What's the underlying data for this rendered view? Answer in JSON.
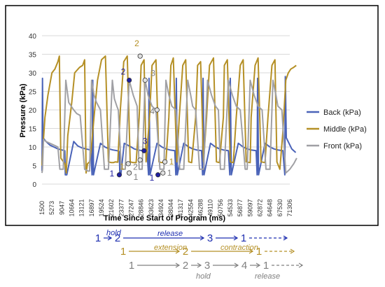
{
  "chart_data": {
    "type": "line",
    "ylabel": "Pressure (kPa)",
    "xlabel": "Time Since Start of Program (ms)",
    "ylim": [
      0,
      40
    ],
    "yticks": [
      0,
      5,
      10,
      15,
      20,
      25,
      30,
      35,
      40
    ],
    "grid": true,
    "legend_position": "right",
    "x_tick_labels": [
      "1500",
      "5273",
      "9047",
      "10664",
      "13121",
      "16897",
      "19524",
      "21602",
      "23377",
      "27247",
      "28846",
      "33623",
      "34924",
      "38044",
      "41317",
      "42554",
      "46288",
      "49110",
      "50756",
      "54533",
      "56877",
      "59097",
      "62872",
      "64648",
      "67530",
      "71306"
    ],
    "series": [
      {
        "name": "Back (kPa)",
        "color": "#4a63b8",
        "x": [
          0,
          0.05,
          0.1,
          0.4,
          0.8,
          1.2,
          1.6,
          2.0,
          2.3,
          2.35,
          2.5,
          3.2,
          3.6,
          4.0,
          4.4,
          4.9,
          5.05,
          5.12,
          5.2,
          5.9,
          6.35,
          6.75,
          7.15,
          7.6,
          7.8,
          7.85,
          7.95,
          8.3,
          9.0,
          9.3,
          9.7,
          10.1,
          10.6,
          10.75,
          10.8,
          10.9,
          11.6,
          12.1,
          12.5,
          12.9,
          13.4,
          13.5,
          13.55,
          13.65,
          14.3,
          14.8,
          15.2,
          15.6,
          16.1,
          16.2,
          16.25,
          16.35,
          17.0,
          17.5,
          17.9,
          18.3,
          18.8,
          18.95,
          19.0,
          19.1,
          19.8,
          20.3,
          20.7,
          21.1,
          21.6,
          21.7,
          21.75,
          21.85,
          22.5,
          23.0,
          23.4,
          23.8,
          24.3,
          24.5,
          24.55,
          24.65,
          25.2,
          25.6
        ],
        "values": [
          3.5,
          28.5,
          12.5,
          11.5,
          10.5,
          10,
          9.5,
          9.2,
          9,
          2.5,
          2.5,
          11.5,
          10.3,
          9.8,
          9.5,
          9.2,
          2.5,
          28,
          2.5,
          11,
          10,
          9.5,
          9.2,
          9,
          8.8,
          2.5,
          2.5,
          11,
          10,
          9.5,
          9.2,
          9,
          8.8,
          2.5,
          28.5,
          2.5,
          11,
          10,
          9.5,
          9.2,
          9,
          2.5,
          28.5,
          2.5,
          11,
          10,
          9.5,
          9.2,
          9,
          2.5,
          28.5,
          2.5,
          11,
          10,
          9.5,
          9.2,
          9,
          2.5,
          28.5,
          2.5,
          11,
          10,
          9.5,
          9.2,
          9,
          2.5,
          28.5,
          2.5,
          11,
          10,
          9.5,
          9.2,
          9,
          2.5,
          29,
          12.5,
          9.5,
          8.5
        ]
      },
      {
        "name": "Middle (kPa)",
        "color": "#b59026",
        "x": [
          0,
          0.15,
          0.3,
          0.6,
          1.0,
          1.3,
          1.6,
          1.75,
          1.9,
          2.3,
          2.45,
          2.6,
          3.0,
          3.3,
          3.8,
          4.1,
          4.3,
          4.45,
          4.6,
          4.8,
          4.95,
          5.25,
          5.6,
          6.0,
          6.4,
          6.7,
          7.0,
          7.2,
          7.4,
          7.65,
          7.9,
          8.25,
          8.6,
          8.9,
          9.2,
          9.5,
          9.8,
          10.0,
          10.3,
          10.5,
          10.85,
          11.1,
          11.5,
          11.8,
          12.1,
          12.5,
          12.8,
          13.0,
          13.25,
          13.6,
          13.85,
          14.2,
          14.5,
          14.8,
          15.1,
          15.5,
          15.7,
          16.0,
          16.3,
          16.6,
          16.9,
          17.3,
          17.6,
          17.9,
          18.3,
          18.4,
          18.7,
          19.0,
          19.3,
          19.6,
          20.0,
          20.3,
          20.6,
          21.0,
          21.1,
          21.5,
          21.8,
          22.1,
          22.5,
          22.8,
          23.2,
          23.5,
          23.7,
          24.0,
          24.3,
          24.6,
          24.85,
          25.1,
          25.4,
          25.65
        ],
        "values": [
          5,
          12,
          18,
          24,
          30,
          31,
          33,
          34.5,
          7,
          5.5,
          3,
          13,
          22,
          30,
          31.5,
          32,
          33.5,
          3,
          5.5,
          6,
          9,
          18,
          28,
          33.5,
          34.5,
          6,
          5.8,
          5.8,
          6,
          5.9,
          20,
          33,
          34.5,
          6,
          5.8,
          5.8,
          18,
          32,
          33.5,
          6,
          18,
          32,
          33.5,
          6,
          5.8,
          6,
          18,
          32,
          34,
          6,
          18,
          32,
          33.5,
          6,
          5.8,
          18,
          32,
          33,
          6,
          18,
          32,
          34,
          6,
          5.8,
          18,
          32,
          33.5,
          6,
          5.8,
          18,
          32,
          33.5,
          6,
          5.8,
          18,
          32,
          34,
          6,
          5.8,
          18,
          32,
          33.5,
          6,
          4,
          14,
          28,
          30,
          31,
          31.5,
          32
        ]
      },
      {
        "name": "Front (kPa)",
        "color": "#a0a0a4",
        "x": [
          0,
          0.05,
          0.15,
          0.4,
          0.8,
          1.2,
          1.6,
          1.8,
          2.15,
          2.4,
          2.7,
          3.2,
          3.5,
          3.85,
          4.3,
          4.65,
          4.8,
          5.0,
          5.25,
          5.5,
          5.9,
          6.3,
          6.7,
          7.1,
          7.3,
          7.55,
          7.7,
          8.0,
          8.4,
          8.8,
          9.2,
          9.6,
          9.8,
          10.1,
          10.4,
          10.7,
          11.1,
          11.5,
          11.9,
          12.3,
          12.5,
          12.8,
          13.1,
          13.5,
          13.9,
          14.3,
          14.7,
          15.0,
          15.2,
          15.5,
          15.9,
          16.3,
          16.7,
          17.1,
          17.5,
          17.8,
          18.0,
          18.4,
          18.8,
          19.2,
          19.6,
          20.0,
          20.5,
          20.7,
          21.0,
          21.4,
          21.8,
          22.2,
          22.6,
          23.0,
          23.3,
          23.6,
          23.8,
          24.2,
          24.6,
          25.0,
          25.4,
          25.7
        ],
        "values": [
          3,
          4,
          12,
          11.5,
          11,
          10.5,
          10,
          4,
          4,
          28,
          22,
          20,
          19,
          18.5,
          4,
          3.5,
          3.5,
          28,
          24,
          22,
          20,
          4,
          4,
          28,
          23,
          21,
          20,
          4,
          4,
          28,
          24,
          21,
          4,
          4,
          28,
          24,
          21,
          20,
          4,
          4,
          28,
          24,
          21,
          20,
          4,
          4,
          28,
          24,
          21,
          20,
          4,
          4,
          28,
          24,
          21,
          20,
          4,
          4,
          28,
          24,
          21,
          20,
          4,
          4,
          28,
          24,
          21,
          20,
          4,
          4,
          28,
          24,
          21,
          20,
          3,
          4,
          5.5,
          7
        ]
      }
    ],
    "annotations": [
      {
        "label": "1",
        "color": "#1f1fa0",
        "x": 7.8,
        "y": 2.5
      },
      {
        "label": "2",
        "color": "#1f1fa0",
        "x": 8.8,
        "y": 28
      },
      {
        "label": "3",
        "color": "#1f1fa0",
        "x": 10.3,
        "y": 9
      },
      {
        "label": "1",
        "color": "#1f1fa0",
        "x": 11.7,
        "y": 2.5
      },
      {
        "label": "1",
        "color": "#b59026",
        "x": 8.7,
        "y": 5.5
      },
      {
        "label": "2",
        "color": "#b59026",
        "x": 9.9,
        "y": 34.5
      },
      {
        "label": "1",
        "color": "#b59026",
        "x": 12.4,
        "y": 6
      },
      {
        "label": "1",
        "color": "#808080",
        "x": 8.8,
        "y": 3
      },
      {
        "label": "2",
        "color": "#808080",
        "x": 9.9,
        "y": 6.5
      },
      {
        "label": "3",
        "color": "#808080",
        "x": 10.4,
        "y": 28
      },
      {
        "label": "4",
        "color": "#808080",
        "x": 11.6,
        "y": 20
      },
      {
        "label": "1",
        "color": "#808080",
        "x": 12.2,
        "y": 3
      }
    ]
  },
  "sequence_diagram": {
    "rows": [
      {
        "color": "#1f2fb0",
        "steps": [
          "1",
          "2",
          "3",
          "1"
        ],
        "labels": [
          "hold",
          "release"
        ]
      },
      {
        "color": "#b59026",
        "steps": [
          "1",
          "2",
          "1"
        ],
        "labels": [
          "extension",
          "contraction"
        ]
      },
      {
        "color": "#808080",
        "steps": [
          "1",
          "2",
          "3",
          "4",
          "1"
        ],
        "labels": [
          "hold",
          "release"
        ]
      }
    ]
  }
}
